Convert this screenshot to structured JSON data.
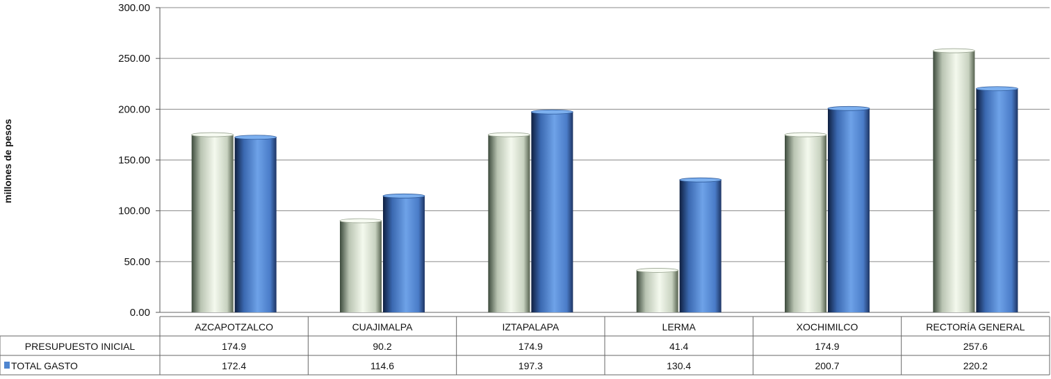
{
  "chart_data": {
    "type": "bar",
    "ylabel": "millones de pesos",
    "ylim": [
      0,
      300
    ],
    "yticks": [
      "0.00",
      "50.00",
      "100.00",
      "150.00",
      "200.00",
      "250.00",
      "300.00"
    ],
    "grid": true,
    "categories": [
      "AZCAPOTZALCO",
      "CUAJIMALPA",
      "IZTAPALAPA",
      "LERMA",
      "XOCHIMILCO",
      "RECTORÍA GENERAL"
    ],
    "series": [
      {
        "name": "PRESUPUESTO INICIAL",
        "values": [
          174.9,
          90.2,
          174.9,
          41.4,
          174.9,
          257.6
        ],
        "labels": [
          "174.9",
          "90.2",
          "174.9",
          "41.4",
          "174.9",
          "257.6"
        ],
        "color": "#e8f0e0"
      },
      {
        "name": "TOTAL GASTO",
        "values": [
          172.4,
          114.6,
          197.3,
          130.4,
          200.7,
          220.2
        ],
        "labels": [
          "172.4",
          "114.6",
          "197.3",
          "130.4",
          "200.7",
          "220.2"
        ],
        "color": "#4f86d0"
      }
    ],
    "data_table": true
  }
}
